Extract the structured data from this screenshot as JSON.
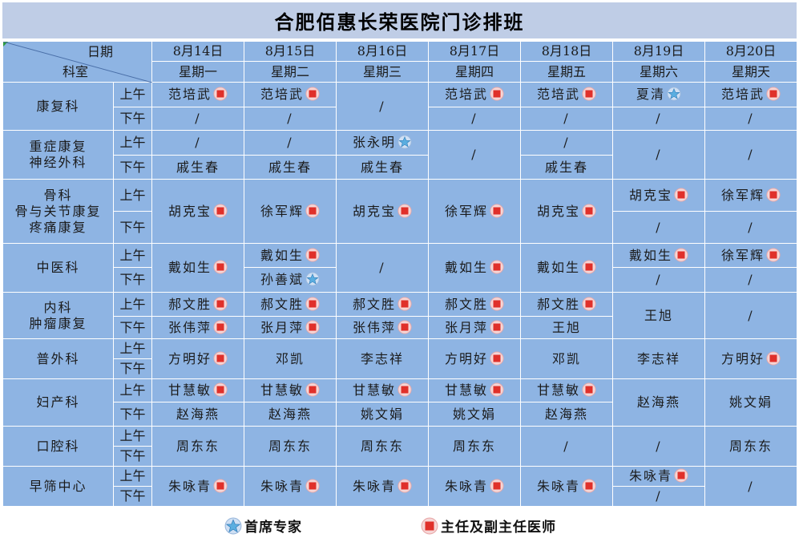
{
  "title": "合肥佰惠长荣医院门诊排班",
  "corner": {
    "date_label": "日期",
    "dept_label": "科室"
  },
  "days": [
    {
      "date": "8月14日",
      "weekday": "星期一"
    },
    {
      "date": "8月15日",
      "weekday": "星期二"
    },
    {
      "date": "8月16日",
      "weekday": "星期三"
    },
    {
      "date": "8月17日",
      "weekday": "星期四"
    },
    {
      "date": "8月18日",
      "weekday": "星期五"
    },
    {
      "date": "8月19日",
      "weekday": "星期六"
    },
    {
      "date": "8月20日",
      "weekday": "星期天"
    }
  ],
  "periods": {
    "am": "上午",
    "pm": "下午"
  },
  "departments": [
    {
      "name": [
        "康复科"
      ]
    },
    {
      "name": [
        "重症康复",
        "神经外科"
      ]
    },
    {
      "name": [
        "骨科",
        "骨与关节康复",
        "疼痛康复"
      ]
    },
    {
      "name": [
        "中医科"
      ]
    },
    {
      "name": [
        "内科",
        "肿瘤康复"
      ]
    },
    {
      "name": [
        "普外科"
      ]
    },
    {
      "name": [
        "妇产科"
      ]
    },
    {
      "name": [
        "口腔科"
      ]
    },
    {
      "name": [
        "早筛中心"
      ]
    }
  ],
  "cells": {
    "c0_am_0": {
      "name": "范培武",
      "badge": "director"
    },
    "c0_am_1": {
      "name": "范培武",
      "badge": "director"
    },
    "c0_d2": {
      "name": "/"
    },
    "c0_am_3": {
      "name": "范培武",
      "badge": "director"
    },
    "c0_am_4": {
      "name": "范培武",
      "badge": "director"
    },
    "c0_am_5": {
      "name": "夏清",
      "badge": "chief"
    },
    "c0_am_6": {
      "name": "范培武",
      "badge": "director"
    },
    "c0_pm_0": {
      "name": "/"
    },
    "c0_pm_1": {
      "name": "/"
    },
    "c0_pm_3": {
      "name": "/"
    },
    "c0_pm_4": {
      "name": "/"
    },
    "c0_pm_5": {
      "name": "/"
    },
    "c0_pm_6": {
      "name": "/"
    },
    "c1_am_0": {
      "name": "/"
    },
    "c1_am_1": {
      "name": "/"
    },
    "c1_am_2": {
      "name": "张永明",
      "badge": "chief"
    },
    "c1_d3": {
      "name": "/"
    },
    "c1_am_4": {
      "name": "/"
    },
    "c1_d5": {
      "name": "/"
    },
    "c1_d6": {
      "name": "/"
    },
    "c1_pm_0": {
      "name": "戚生春"
    },
    "c1_pm_1": {
      "name": "戚生春"
    },
    "c1_pm_2": {
      "name": "戚生春"
    },
    "c1_pm_4": {
      "name": "戚生春"
    },
    "c2_d0": {
      "name": "胡克宝",
      "badge": "director"
    },
    "c2_d1": {
      "name": "徐军辉",
      "badge": "director"
    },
    "c2_d2": {
      "name": "胡克宝",
      "badge": "director"
    },
    "c2_d3": {
      "name": "徐军辉",
      "badge": "director"
    },
    "c2_d4": {
      "name": "胡克宝",
      "badge": "director"
    },
    "c2_am_5": {
      "name": "胡克宝",
      "badge": "director"
    },
    "c2_am_6": {
      "name": "徐军辉",
      "badge": "director"
    },
    "c2_pm_5": {
      "name": "/"
    },
    "c2_pm_6": {
      "name": "/"
    },
    "c3_d0": {
      "name": "戴如生",
      "badge": "director"
    },
    "c3_am_1": {
      "name": "戴如生",
      "badge": "director"
    },
    "c3_pm_1": {
      "name": "孙善斌",
      "badge": "chief"
    },
    "c3_d2": {
      "name": "/"
    },
    "c3_d3": {
      "name": "戴如生",
      "badge": "director"
    },
    "c3_d4": {
      "name": "戴如生",
      "badge": "director"
    },
    "c3_am_5": {
      "name": "戴如生",
      "badge": "director"
    },
    "c3_am_6": {
      "name": "徐军辉",
      "badge": "director"
    },
    "c3_pm_5": {
      "name": "/"
    },
    "c3_pm_6": {
      "name": "/"
    },
    "c4_am_0": {
      "name": "郝文胜",
      "badge": "director"
    },
    "c4_am_1": {
      "name": "郝文胜",
      "badge": "director"
    },
    "c4_am_2": {
      "name": "郝文胜",
      "badge": "director"
    },
    "c4_am_3": {
      "name": "郝文胜",
      "badge": "director"
    },
    "c4_am_4": {
      "name": "郝文胜",
      "badge": "director"
    },
    "c4_d5": {
      "name": "王旭"
    },
    "c4_d6": {
      "name": "/"
    },
    "c4_pm_0": {
      "name": "张伟萍",
      "badge": "director"
    },
    "c4_pm_1": {
      "name": "张月萍",
      "badge": "director"
    },
    "c4_pm_2": {
      "name": "张伟萍",
      "badge": "director"
    },
    "c4_pm_3": {
      "name": "张月萍",
      "badge": "director"
    },
    "c4_pm_4": {
      "name": "王旭"
    },
    "c5_d0": {
      "name": "方明好",
      "badge": "director"
    },
    "c5_d1": {
      "name": "邓凯"
    },
    "c5_d2": {
      "name": "李志祥"
    },
    "c5_d3": {
      "name": "方明好",
      "badge": "director"
    },
    "c5_d4": {
      "name": "邓凯"
    },
    "c5_d5": {
      "name": "李志祥"
    },
    "c5_d6": {
      "name": "方明好",
      "badge": "director"
    },
    "c6_am_0": {
      "name": "甘慧敏",
      "badge": "director"
    },
    "c6_am_1": {
      "name": "甘慧敏",
      "badge": "director"
    },
    "c6_am_2": {
      "name": "甘慧敏",
      "badge": "director"
    },
    "c6_am_3": {
      "name": "甘慧敏",
      "badge": "director"
    },
    "c6_am_4": {
      "name": "甘慧敏",
      "badge": "director"
    },
    "c6_d5": {
      "name": "赵海燕"
    },
    "c6_d6": {
      "name": "姚文娟"
    },
    "c6_pm_0": {
      "name": "赵海燕"
    },
    "c6_pm_1": {
      "name": "赵海燕"
    },
    "c6_pm_2": {
      "name": "姚文娟"
    },
    "c6_pm_3": {
      "name": "姚文娟"
    },
    "c6_pm_4": {
      "name": "赵海燕"
    },
    "c7_d0": {
      "name": "周东东"
    },
    "c7_d1": {
      "name": "周东东"
    },
    "c7_d2": {
      "name": "周东东"
    },
    "c7_d3": {
      "name": "周东东"
    },
    "c7_d4": {
      "name": "/"
    },
    "c7_d5": {
      "name": "/"
    },
    "c7_d6": {
      "name": "周东东"
    },
    "c8_d0": {
      "name": "朱咏青",
      "badge": "director"
    },
    "c8_d1": {
      "name": "朱咏青",
      "badge": "director"
    },
    "c8_d2": {
      "name": "朱咏青",
      "badge": "director"
    },
    "c8_d3": {
      "name": "朱咏青",
      "badge": "director"
    },
    "c8_d4": {
      "name": "朱咏青",
      "badge": "director"
    },
    "c8_am_5": {
      "name": "朱咏青",
      "badge": "director"
    },
    "c8_pm_5": {
      "name": "/"
    },
    "c8_d6": {
      "name": "/"
    }
  },
  "legend": {
    "chief_label": "首席专家",
    "director_label": "主任及副主任医师"
  },
  "colors": {
    "cell_bg": "#8eb4e3",
    "title_bg": "#bfcde6",
    "star": "#5aaee0",
    "square": "#e0302a"
  }
}
